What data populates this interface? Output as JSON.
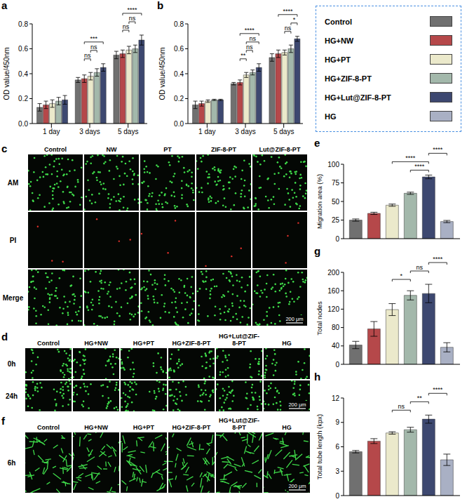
{
  "chart_data": [
    {
      "panel": "a",
      "type": "bar",
      "ylabel": "OD value/450nm",
      "categories": [
        "1 day",
        "3 days",
        "5 days"
      ],
      "ylim": [
        0,
        0.8
      ],
      "yticks": [
        {
          "value": 0,
          "label": "0.0"
        },
        0.2,
        0.4,
        0.6,
        0.8
      ],
      "series": [
        {
          "name": "Control",
          "color": "#707070",
          "values": [
            0.13,
            0.35,
            0.55
          ],
          "errors": [
            0.03,
            0.02,
            0.03
          ]
        },
        {
          "name": "HG+NW",
          "color": "#b5484a",
          "values": [
            0.15,
            0.36,
            0.56
          ],
          "errors": [
            0.03,
            0.03,
            0.03
          ]
        },
        {
          "name": "HG+PT",
          "color": "#ebe9cb",
          "values": [
            0.16,
            0.38,
            0.59
          ],
          "errors": [
            0.03,
            0.03,
            0.03
          ]
        },
        {
          "name": "HG+ZIF-8-PT",
          "color": "#a3b8ab",
          "values": [
            0.18,
            0.41,
            0.6
          ],
          "errors": [
            0.03,
            0.03,
            0.03
          ]
        },
        {
          "name": "HG+Lut@ZIF-8-PT",
          "color": "#3d4870",
          "values": [
            0.19,
            0.45,
            0.67
          ],
          "errors": [
            0.035,
            0.03,
            0.04
          ]
        }
      ],
      "annotations": [
        {
          "category": "3 days",
          "between": [
            "HG+NW",
            "HG+PT"
          ],
          "label": "ns"
        },
        {
          "category": "3 days",
          "between": [
            "HG+PT",
            "HG+ZIF-8-PT"
          ],
          "label": "ns"
        },
        {
          "category": "3 days",
          "between": [
            "HG+NW",
            "HG+Lut@ZIF-8-PT"
          ],
          "label": "***"
        },
        {
          "category": "5 days",
          "between": [
            "HG+NW",
            "HG+PT"
          ],
          "label": "ns"
        },
        {
          "category": "5 days",
          "between": [
            "HG+PT",
            "HG+ZIF-8-PT"
          ],
          "label": "ns"
        },
        {
          "category": "5 days",
          "between": [
            "HG+NW",
            "HG+Lut@ZIF-8-PT"
          ],
          "label": "****"
        }
      ]
    },
    {
      "panel": "b",
      "type": "bar",
      "ylabel": "OD value/450nm",
      "categories": [
        "1 day",
        "3 days",
        "5 days"
      ],
      "ylim": [
        0,
        0.8
      ],
      "yticks": [
        {
          "value": 0,
          "label": "0.0"
        },
        0.2,
        0.4,
        0.6,
        0.8
      ],
      "series": [
        {
          "name": "Control",
          "color": "#707070",
          "values": [
            0.15,
            0.32,
            0.53
          ],
          "errors": [
            0.03,
            0.01,
            0.03
          ]
        },
        {
          "name": "HG+NW",
          "color": "#b5484a",
          "values": [
            0.16,
            0.33,
            0.56
          ],
          "errors": [
            0.02,
            0.02,
            0.03
          ]
        },
        {
          "name": "HG+PT",
          "color": "#ebe9cb",
          "values": [
            0.18,
            0.39,
            0.57
          ],
          "errors": [
            0.01,
            0.02,
            0.02
          ]
        },
        {
          "name": "HG+ZIF-8-PT",
          "color": "#a3b8ab",
          "values": [
            0.19,
            0.41,
            0.6
          ],
          "errors": [
            0.005,
            0.02,
            0.03
          ]
        },
        {
          "name": "HG+Lut@ZIF-8-PT",
          "color": "#3d4870",
          "values": [
            0.19,
            0.45,
            0.68
          ],
          "errors": [
            0.005,
            0.03,
            0.02
          ]
        }
      ],
      "annotations": [
        {
          "category": "3 days",
          "between": [
            "HG+NW",
            "HG+PT"
          ],
          "label": "**"
        },
        {
          "category": "3 days",
          "between": [
            "HG+PT",
            "HG+ZIF-8-PT"
          ],
          "label": "ns"
        },
        {
          "category": "3 days",
          "between": [
            "HG+PT",
            "HG+Lut@ZIF-8-PT"
          ],
          "label": "ns"
        },
        {
          "category": "3 days",
          "between": [
            "HG+NW",
            "HG+Lut@ZIF-8-PT"
          ],
          "label": "****"
        },
        {
          "category": "5 days",
          "between": [
            "HG+PT",
            "HG+ZIF-8-PT"
          ],
          "label": "ns"
        },
        {
          "category": "5 days",
          "between": [
            "HG+ZIF-8-PT",
            "HG+Lut@ZIF-8-PT"
          ],
          "label": "*"
        },
        {
          "category": "5 days",
          "between": [
            "HG+NW",
            "HG+Lut@ZIF-8-PT"
          ],
          "label": "****"
        }
      ]
    },
    {
      "panel": "e",
      "type": "bar",
      "ylabel": "Migration area (%)",
      "tick_labels": "y",
      "categories": [
        "Control",
        "HG+NW",
        "HG+PT",
        "HG+ZIF-8-PT",
        "HG+Lut@ZIF-8-PT",
        "HG"
      ],
      "colors": [
        "#707070",
        "#b5484a",
        "#ebe9cb",
        "#a3b8ab",
        "#3d4870",
        "#a9b0c4"
      ],
      "values": [
        25,
        34,
        45,
        61,
        83,
        23
      ],
      "errors": [
        1.5,
        1.5,
        1.5,
        1.5,
        2.5,
        1.5
      ],
      "ylim": [
        0,
        100
      ],
      "yticks": [
        0,
        25,
        50,
        75,
        100
      ],
      "annotations": [
        {
          "between": [
            "HG+ZIF-8-PT",
            "HG+Lut@ZIF-8-PT"
          ],
          "label": "****"
        },
        {
          "between": [
            "HG+PT",
            "HG+Lut@ZIF-8-PT"
          ],
          "label": "****"
        },
        {
          "between": [
            "HG+Lut@ZIF-8-PT",
            "HG"
          ],
          "label": "****"
        }
      ]
    },
    {
      "panel": "g",
      "type": "bar",
      "ylabel": "Total nodes",
      "tick_labels": "y",
      "categories": [
        "Control",
        "HG+NW",
        "HG+PT",
        "HG+ZIF-8-PT",
        "HG+Lut@ZIF-8-PT",
        "HG"
      ],
      "colors": [
        "#707070",
        "#b5484a",
        "#ebe9cb",
        "#a3b8ab",
        "#3d4870",
        "#a9b0c4"
      ],
      "values": [
        42,
        77,
        119,
        150,
        154,
        37
      ],
      "errors": [
        8,
        16,
        13,
        10,
        20,
        10
      ],
      "ylim": [
        0,
        200
      ],
      "yticks": [
        0,
        40,
        80,
        120,
        160,
        200
      ],
      "annotations": [
        {
          "between": [
            "HG+PT",
            "HG+ZIF-8-PT"
          ],
          "label": "*"
        },
        {
          "between": [
            "HG+ZIF-8-PT",
            "HG+Lut@ZIF-8-PT"
          ],
          "label": "ns"
        },
        {
          "between": [
            "HG+Lut@ZIF-8-PT",
            "HG"
          ],
          "label": "****"
        }
      ]
    },
    {
      "panel": "h",
      "type": "bar",
      "ylabel": "Total tube length (kpx)",
      "tick_labels": "y",
      "categories": [
        "Control",
        "HG+NW",
        "HG+PT",
        "HG+ZIF-8-PT",
        "HG+Lut@ZIF-8-PT",
        "HG"
      ],
      "colors": [
        "#707070",
        "#b5484a",
        "#ebe9cb",
        "#a3b8ab",
        "#3d4870",
        "#a9b0c4"
      ],
      "values": [
        5.4,
        6.7,
        7.7,
        8.1,
        9.4,
        4.4
      ],
      "errors": [
        0.15,
        0.3,
        0.15,
        0.3,
        0.5,
        0.7
      ],
      "ylim": [
        0,
        12
      ],
      "yticks": [
        0,
        3,
        6,
        9,
        12
      ],
      "annotations": [
        {
          "between": [
            "HG+PT",
            "HG+ZIF-8-PT"
          ],
          "label": "ns"
        },
        {
          "between": [
            "HG+ZIF-8-PT",
            "HG+Lut@ZIF-8-PT"
          ],
          "label": "**"
        },
        {
          "between": [
            "HG+Lut@ZIF-8-PT",
            "HG"
          ],
          "label": "****"
        }
      ]
    }
  ],
  "legend_box": [
    {
      "name": "Control",
      "color": "#707070"
    },
    {
      "name": "HG+NW",
      "color": "#b5484a"
    },
    {
      "name": "HG+PT",
      "color": "#ebe9cb"
    },
    {
      "name": "HG+ZIF-8-PT",
      "color": "#a3b8ab"
    },
    {
      "name": "HG+Lut@ZIF-8-PT",
      "color": "#3d4870"
    },
    {
      "name": "HG",
      "color": "#a9b0c4"
    }
  ],
  "image_panels": [
    {
      "panel": "c",
      "columns": [
        "Control",
        "NW",
        "PT",
        "ZIF-8-PT",
        "Lut@ZIF-8-PT"
      ],
      "rows": [
        "AM",
        "PI",
        "Merge"
      ],
      "scale_bar": "200 μm"
    },
    {
      "panel": "d",
      "columns": [
        "Control",
        "HG+NW",
        "HG+PT",
        "HG+ZIF-8-PT",
        "HG+Lut@ZIF-8-PT",
        "HG"
      ],
      "rows": [
        "0h",
        "24h"
      ],
      "scale_bar": "200 μm"
    },
    {
      "panel": "f",
      "columns": [
        "Control",
        "HG+NW",
        "HG+PT",
        "HG+ZIF-8-PT",
        "HG+Lut@ZIF-8-PT",
        "HG"
      ],
      "rows": [
        "6h"
      ],
      "scale_bar": "200 μm"
    }
  ]
}
